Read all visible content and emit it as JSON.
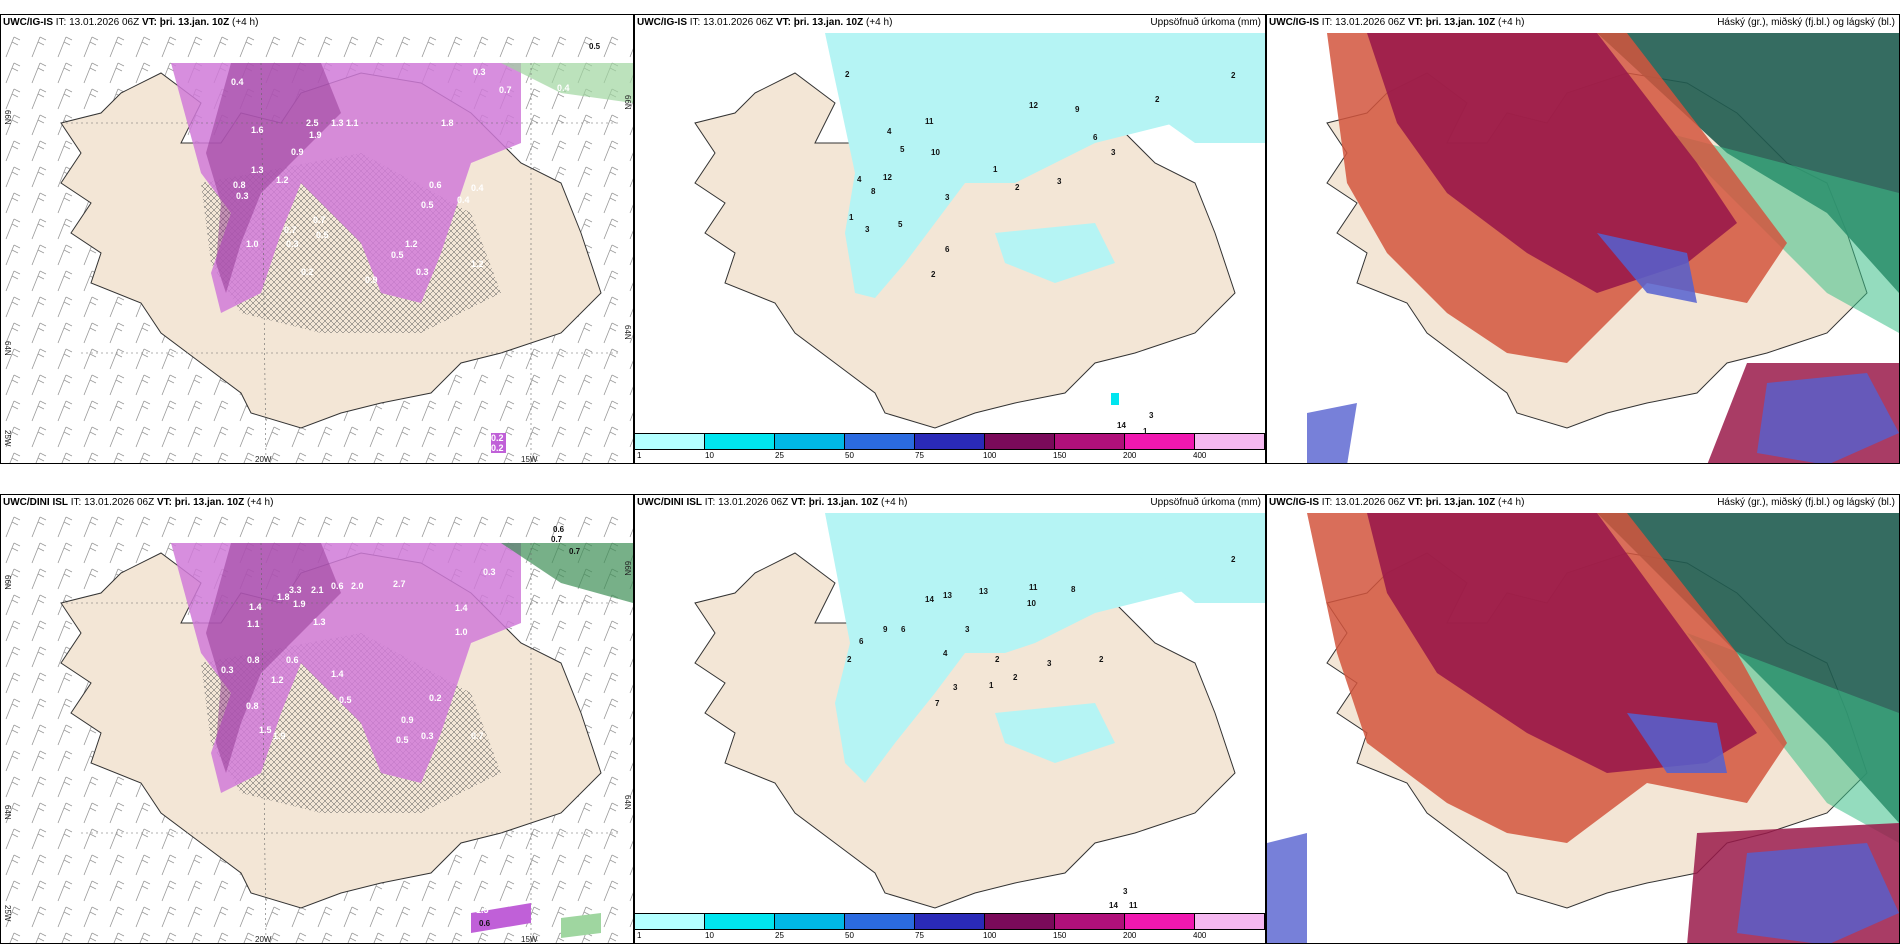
{
  "panels": [
    {
      "id": "p1",
      "model": "UWC/IG-IS",
      "it": "IT: 13.01.2026 06Z",
      "vt_prefix": "VT:",
      "vt": "þri. 13.jan. 10Z",
      "offset": "(+4 h)",
      "right": ""
    },
    {
      "id": "p2",
      "model": "UWC/IG-IS",
      "it": "IT: 13.01.2026 06Z",
      "vt_prefix": "VT:",
      "vt": "þri. 13.jan. 10Z",
      "offset": "(+4 h)",
      "right": "Uppsöfnuð úrkoma (mm)"
    },
    {
      "id": "p3",
      "model": "UWC/IG-IS",
      "it": "IT: 13.01.2026 06Z",
      "vt_prefix": "VT:",
      "vt": "þri. 13.jan. 10Z",
      "offset": "(+4 h)",
      "right": "Háský (gr.), miðský (fj.bl.) og lágský (bl.)"
    },
    {
      "id": "p4",
      "model": "UWC/DINI ISL",
      "it": "IT: 13.01.2026 06Z",
      "vt_prefix": "VT:",
      "vt": "þri. 13.jan. 10Z",
      "offset": "(+4 h)",
      "right": ""
    },
    {
      "id": "p5",
      "model": "UWC/DINI ISL",
      "it": "IT: 13.01.2026 06Z",
      "vt_prefix": "VT:",
      "vt": "þri. 13.jan. 10Z",
      "offset": "(+4 h)",
      "right": "Uppsöfnuð úrkoma (mm)"
    },
    {
      "id": "p6",
      "model": "UWC/IG-IS",
      "it": "IT: 13.01.2026 06Z",
      "vt_prefix": "VT:",
      "vt": "þri. 13.jan. 10Z",
      "offset": "(+4 h)",
      "right": "Háský (gr.), miðský (fj.bl.) og lágský (bl.)"
    }
  ],
  "axis": {
    "lat_top": "66N",
    "lat_bottom": "64N",
    "lon_left": "25W",
    "lon_mid": "20W",
    "lon_right": "15W"
  },
  "colorbar": {
    "ticks": [
      "1",
      "10",
      "25",
      "50",
      "75",
      "100",
      "150",
      "200",
      "400"
    ],
    "colors": [
      "#b3ffff",
      "#00e5ef",
      "#00b8e6",
      "#2b6be0",
      "#2a2ab8",
      "#7a0a5a",
      "#b0107a",
      "#f018b0",
      "#f5b8f0"
    ]
  },
  "colors": {
    "land": "#f3e6d6",
    "precip_light": "#b5f4f4",
    "snow": "#c060d8",
    "snow_dark": "#8a2d8a",
    "cloud_high": "#1f5c50",
    "cloud_mid": "#9a1a4a",
    "cloud_low": "#d2553d",
    "cloud_blue": "#5560d0",
    "cloud_green": "#3dbf88"
  },
  "p1_numbers": [
    "0.5",
    "0.5",
    "0.4",
    "0.5",
    "0.3",
    "0.7",
    "0.5",
    "0.4",
    "1.6",
    "2.5",
    "1.9",
    "1.3",
    "1.1",
    "1.8",
    "0.9",
    "1.3",
    "0.8",
    "0.3",
    "1.2",
    "0.7",
    "0.5",
    "0.4",
    "1.0",
    "0.7",
    "0.3",
    "0.3",
    "0.2",
    "0.5",
    "1.2",
    "0.6",
    "0.5",
    "0.4",
    "0.9",
    "1.2",
    "0.2",
    "0.2"
  ],
  "p2_numbers": [
    "2",
    "11",
    "12",
    "9",
    "6",
    "3",
    "4",
    "5",
    "10",
    "12",
    "8",
    "4",
    "1",
    "1",
    "3",
    "3",
    "3",
    "5",
    "6",
    "2",
    "14",
    "1",
    "3",
    "2",
    "2",
    "2"
  ],
  "p4_numbers": [
    "0.6",
    "0.7",
    "0.7",
    "1.8",
    "2.7",
    "3.3",
    "1.9",
    "2.1",
    "0.6",
    "2.0",
    "0.3",
    "1.4",
    "1.1",
    "1.3",
    "0.8",
    "0.6",
    "1.4",
    "0.3",
    "1.2",
    "1.4",
    "1.0",
    "0.5",
    "0.8",
    "1.5",
    "1.9",
    "0.2",
    "0.9",
    "0.5",
    "0.7",
    "0.3",
    "1.5",
    "0.6"
  ],
  "p5_numbers": [
    "2",
    "14",
    "13",
    "13",
    "11",
    "10",
    "8",
    "9",
    "6",
    "6",
    "2",
    "3",
    "4",
    "2",
    "3",
    "7",
    "1",
    "2",
    "3",
    "14",
    "11",
    "3",
    "2"
  ]
}
